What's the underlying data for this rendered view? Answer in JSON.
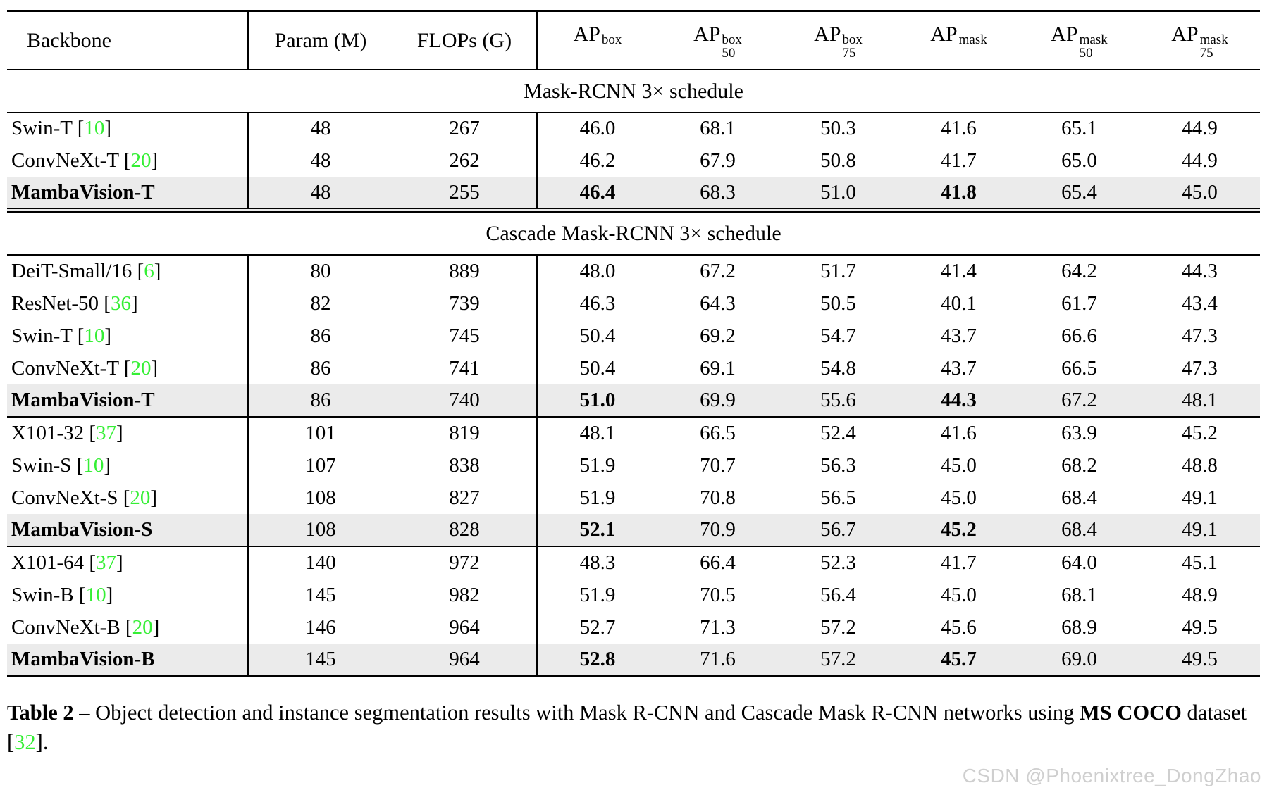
{
  "colors": {
    "reference_green": "#35ef35",
    "highlight_row_gray": "#ebebeb",
    "watermark_gray": "#cfcfcf"
  },
  "table": {
    "columns": [
      {
        "key": "backbone",
        "label": "Backbone"
      },
      {
        "key": "param",
        "label": "Param (M)"
      },
      {
        "key": "flops",
        "label": "FLOPs (G)"
      },
      {
        "key": "ap-box",
        "base": "AP",
        "sup": "box",
        "sub": ""
      },
      {
        "key": "ap50-box",
        "base": "AP",
        "sup": "box",
        "sub": "50"
      },
      {
        "key": "ap75-box",
        "base": "AP",
        "sup": "box",
        "sub": "75"
      },
      {
        "key": "ap-mask",
        "base": "AP",
        "sup": "mask",
        "sub": ""
      },
      {
        "key": "ap50-mask",
        "base": "AP",
        "sup": "mask",
        "sub": "50"
      },
      {
        "key": "ap75-mask",
        "base": "AP",
        "sup": "mask",
        "sub": "75"
      }
    ],
    "sections": [
      {
        "title": "Mask-RCNN 3× schedule",
        "groups": [
          [
            {
              "backbone": "Swin-T",
              "ref": "10",
              "values": [
                "48",
                "267",
                "46.0",
                "68.1",
                "50.3",
                "41.6",
                "65.1",
                "44.9"
              ],
              "highlight": false
            },
            {
              "backbone": "ConvNeXt-T",
              "ref": "20",
              "values": [
                "48",
                "262",
                "46.2",
                "67.9",
                "50.8",
                "41.7",
                "65.0",
                "44.9"
              ],
              "highlight": false
            },
            {
              "backbone": "MambaVision-T",
              "ref": null,
              "values": [
                "48",
                "255",
                "46.4",
                "68.3",
                "51.0",
                "41.8",
                "65.4",
                "45.0"
              ],
              "highlight": true,
              "bold_values": [
                2,
                5
              ]
            }
          ]
        ]
      },
      {
        "title": "Cascade Mask-RCNN 3× schedule",
        "groups": [
          [
            {
              "backbone": "DeiT-Small/16",
              "ref": "6",
              "values": [
                "80",
                "889",
                "48.0",
                "67.2",
                "51.7",
                "41.4",
                "64.2",
                "44.3"
              ],
              "highlight": false
            },
            {
              "backbone": "ResNet-50",
              "ref": "36",
              "values": [
                "82",
                "739",
                "46.3",
                "64.3",
                "50.5",
                "40.1",
                "61.7",
                "43.4"
              ],
              "highlight": false
            },
            {
              "backbone": "Swin-T",
              "ref": "10",
              "values": [
                "86",
                "745",
                "50.4",
                "69.2",
                "54.7",
                "43.7",
                "66.6",
                "47.3"
              ],
              "highlight": false
            },
            {
              "backbone": "ConvNeXt-T",
              "ref": "20",
              "values": [
                "86",
                "741",
                "50.4",
                "69.1",
                "54.8",
                "43.7",
                "66.5",
                "47.3"
              ],
              "highlight": false
            },
            {
              "backbone": "MambaVision-T",
              "ref": null,
              "values": [
                "86",
                "740",
                "51.0",
                "69.9",
                "55.6",
                "44.3",
                "67.2",
                "48.1"
              ],
              "highlight": true,
              "bold_values": [
                2,
                5
              ]
            }
          ],
          [
            {
              "backbone": "X101-32",
              "ref": "37",
              "values": [
                "101",
                "819",
                "48.1",
                "66.5",
                "52.4",
                "41.6",
                "63.9",
                "45.2"
              ],
              "highlight": false
            },
            {
              "backbone": "Swin-S",
              "ref": "10",
              "values": [
                "107",
                "838",
                "51.9",
                "70.7",
                "56.3",
                "45.0",
                "68.2",
                "48.8"
              ],
              "highlight": false
            },
            {
              "backbone": "ConvNeXt-S",
              "ref": "20",
              "values": [
                "108",
                "827",
                "51.9",
                "70.8",
                "56.5",
                "45.0",
                "68.4",
                "49.1"
              ],
              "highlight": false
            },
            {
              "backbone": "MambaVision-S",
              "ref": null,
              "values": [
                "108",
                "828",
                "52.1",
                "70.9",
                "56.7",
                "45.2",
                "68.4",
                "49.1"
              ],
              "highlight": true,
              "bold_values": [
                2,
                5
              ]
            }
          ],
          [
            {
              "backbone": "X101-64",
              "ref": "37",
              "values": [
                "140",
                "972",
                "48.3",
                "66.4",
                "52.3",
                "41.7",
                "64.0",
                "45.1"
              ],
              "highlight": false
            },
            {
              "backbone": "Swin-B",
              "ref": "10",
              "values": [
                "145",
                "982",
                "51.9",
                "70.5",
                "56.4",
                "45.0",
                "68.1",
                "48.9"
              ],
              "highlight": false
            },
            {
              "backbone": "ConvNeXt-B",
              "ref": "20",
              "values": [
                "146",
                "964",
                "52.7",
                "71.3",
                "57.2",
                "45.6",
                "68.9",
                "49.5"
              ],
              "highlight": false
            },
            {
              "backbone": "MambaVision-B",
              "ref": null,
              "values": [
                "145",
                "964",
                "52.8",
                "71.6",
                "57.2",
                "45.7",
                "69.0",
                "49.5"
              ],
              "highlight": true,
              "bold_values": [
                2,
                5
              ]
            }
          ]
        ]
      }
    ]
  },
  "caption": {
    "label": "Table 2",
    "dash": " – ",
    "text_before_bold": "Object detection and instance segmentation results with Mask R-CNN and Cascade Mask R-CNN networks using ",
    "bold_text": "MS COCO",
    "text_after_bold": " dataset [",
    "ref": "32",
    "text_end": "]."
  },
  "watermark": "CSDN @Phoenixtree_DongZhao"
}
